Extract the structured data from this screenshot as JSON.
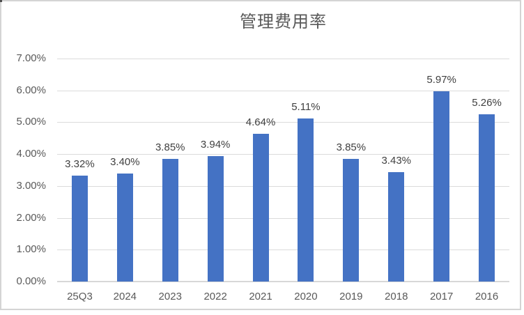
{
  "window": {
    "background": "#ffffff",
    "frame_border_color": "#d4d4d4"
  },
  "chart_data": {
    "type": "bar",
    "title": "管理费用率",
    "categories": [
      "25Q3",
      "2024",
      "2023",
      "2022",
      "2021",
      "2020",
      "2019",
      "2018",
      "2017",
      "2016"
    ],
    "values": [
      3.32,
      3.4,
      3.85,
      3.94,
      4.64,
      5.11,
      3.85,
      3.43,
      5.97,
      5.26
    ],
    "data_labels": [
      "3.32%",
      "3.40%",
      "3.85%",
      "3.94%",
      "4.64%",
      "5.11%",
      "3.85%",
      "3.43%",
      "5.97%",
      "5.26%"
    ],
    "xlabel": "",
    "ylabel": "",
    "ylim": [
      0,
      7
    ],
    "ytick_step": 1,
    "ytick_labels": [
      "0.00%",
      "1.00%",
      "2.00%",
      "3.00%",
      "4.00%",
      "5.00%",
      "6.00%",
      "7.00%"
    ],
    "grid": true,
    "legend": "none",
    "bar_color": "#4472C4",
    "gridline_color": "#dbdbdb",
    "axis_line_color": "#d7d7d7",
    "title_color": "#595959",
    "axis_text_color": "#595959",
    "data_label_color": "#404040"
  }
}
